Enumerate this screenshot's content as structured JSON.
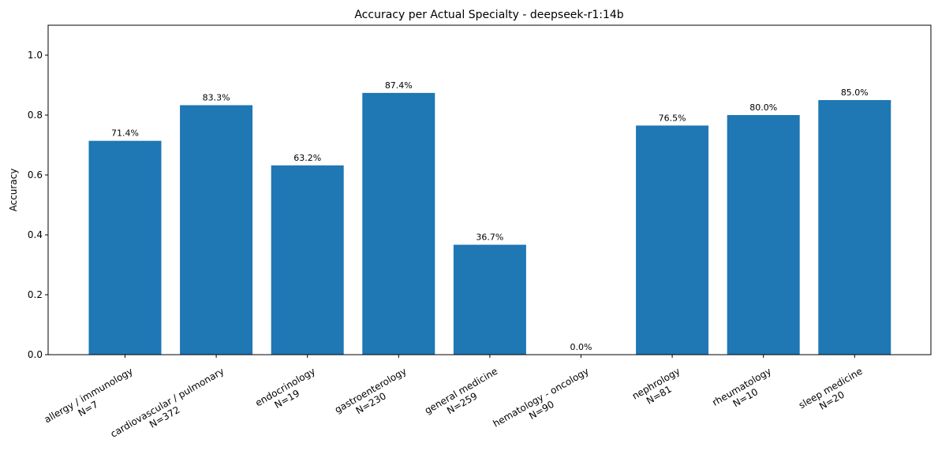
{
  "chart_data": {
    "type": "bar",
    "title": "Accuracy per Actual Specialty - deepseek-r1:14b",
    "xlabel": "",
    "ylabel": "Accuracy",
    "ylim": [
      0,
      1.1
    ],
    "yticks": [
      "0.0",
      "0.2",
      "0.4",
      "0.6",
      "0.8",
      "1.0"
    ],
    "grid": false,
    "legend": "none",
    "bar_color": "#1f77b4",
    "categories": [
      [
        "allergy / immunology",
        "N=7"
      ],
      [
        "cardiovascular / pulmonary",
        "N=372"
      ],
      [
        "endocrinology",
        "N=19"
      ],
      [
        "gastroenterology",
        "N=230"
      ],
      [
        "general medicine",
        "N=259"
      ],
      [
        "hematology - oncology",
        "N=90"
      ],
      [
        "nephrology",
        "N=81"
      ],
      [
        "rheumatology",
        "N=10"
      ],
      [
        "sleep medicine",
        "N=20"
      ]
    ],
    "values": [
      0.714,
      0.833,
      0.632,
      0.874,
      0.367,
      0.0,
      0.765,
      0.8,
      0.85
    ],
    "data_labels": [
      "71.4%",
      "83.3%",
      "63.2%",
      "87.4%",
      "36.7%",
      "0.0%",
      "76.5%",
      "80.0%",
      "85.0%"
    ]
  }
}
